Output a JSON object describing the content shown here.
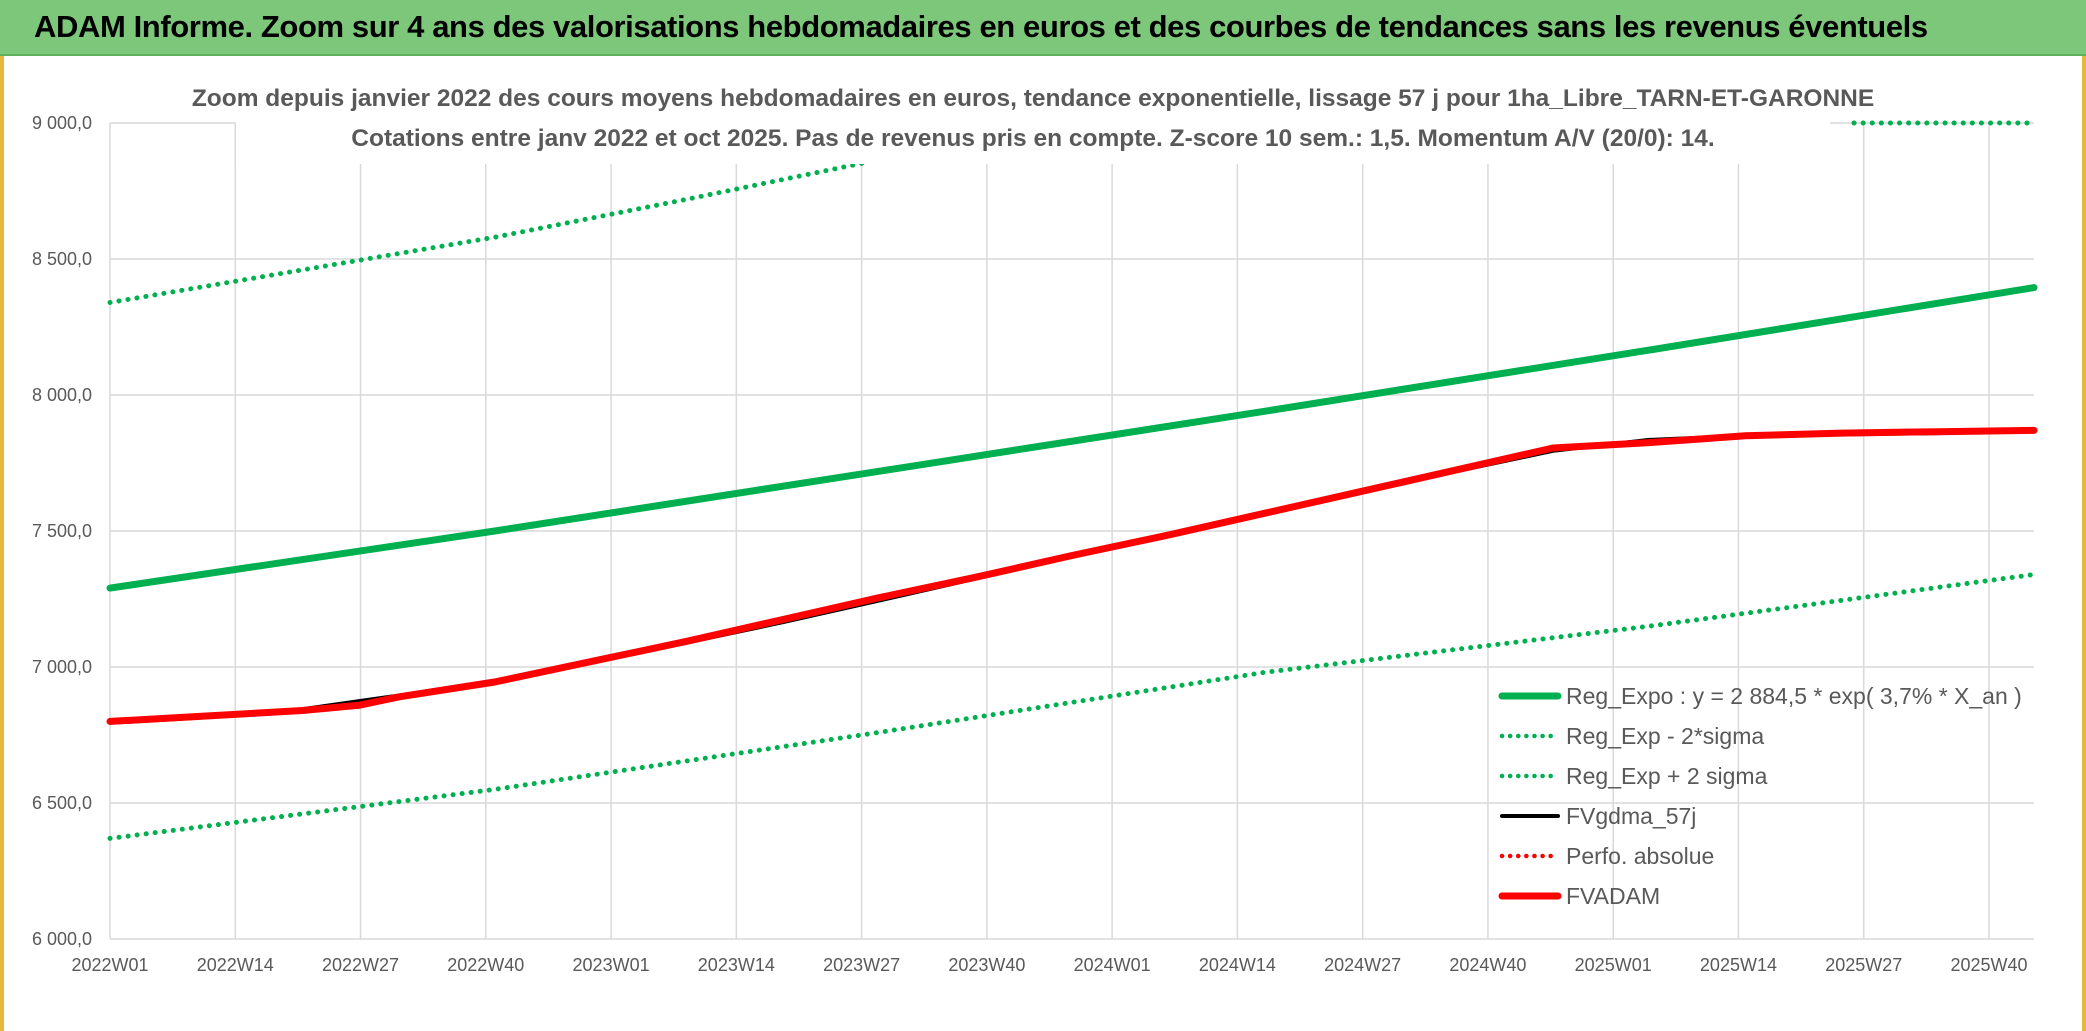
{
  "header": {
    "title": "ADAM Informe. Zoom sur 4 ans des valorisations hebdomadaires en euros et des courbes de tendances sans les revenus éventuels"
  },
  "colors": {
    "header_bg": "#7dc77b",
    "frame": "#e4b83a",
    "reg_expo": "#00b050",
    "fvgdma": "#000000",
    "fvadam": "#ff0000",
    "grid": "#d9d9d9",
    "text": "#595959"
  },
  "chart_data": {
    "type": "line",
    "title_lines": [
      "Zoom depuis janvier 2022 des cours moyens hebdomadaires en euros, tendance exponentielle, lissage 57 j pour 1ha_Libre_TARN-ET-GARONNE",
      "Cotations entre janv 2022 et oct 2025. Pas de revenus pris en compte. Z-score 10 sem.: 1,5. Momentum A/V (20/0): 14."
    ],
    "xlabel": "",
    "ylabel": "",
    "ylim": [
      6000,
      9000
    ],
    "y_ticks": [
      6000,
      6500,
      7000,
      7500,
      8000,
      8500,
      9000
    ],
    "y_tick_labels": [
      "6 000,0",
      "6 500,0",
      "7 000,0",
      "7 500,0",
      "8 000,0",
      "8 500,0",
      "9 000,0"
    ],
    "x_tick_labels": [
      "2022W01",
      "2022W14",
      "2022W27",
      "2022W40",
      "2023W01",
      "2023W14",
      "2023W27",
      "2023W40",
      "2024W01",
      "2024W14",
      "2024W27",
      "2024W40",
      "2025W01",
      "2025W14",
      "2025W27",
      "2025W40"
    ],
    "x_range_weeks": [
      0,
      200
    ],
    "grid": true,
    "legend_position": "bottom-right",
    "series": [
      {
        "name": "Reg_Expo : y = 2 884,5 * exp( 3,7% *  X_an )",
        "style": "solid",
        "weight": "thick",
        "color": "#00b050",
        "x": [
          0,
          40,
          80,
          120,
          160,
          200
        ],
        "values": [
          7290,
          7500,
          7720,
          7940,
          8165,
          8395
        ]
      },
      {
        "name": "Reg_Exp - 2*sigma",
        "style": "dotted",
        "weight": "medium",
        "color": "#00b050",
        "x": [
          0,
          40,
          80,
          120,
          160,
          200
        ],
        "values": [
          6370,
          6550,
          6760,
          6980,
          7150,
          7340
        ]
      },
      {
        "name": "Reg_Exp + 2 sigma",
        "style": "dotted",
        "weight": "medium",
        "color": "#00b050",
        "x": [
          0,
          20,
          40,
          60,
          78.6
        ],
        "values": [
          8340,
          8460,
          8580,
          8720,
          8855
        ]
      },
      {
        "name": "FVgdma_57j",
        "style": "solid",
        "weight": "medium",
        "color": "#000000",
        "x": [
          0,
          10,
          20,
          26,
          30,
          40,
          50,
          60,
          70,
          80,
          90,
          100,
          110,
          120,
          130,
          140,
          150,
          160,
          170,
          180,
          190,
          200
        ],
        "values": [
          6795,
          6815,
          6845,
          6875,
          6895,
          6950,
          7020,
          7090,
          7165,
          7245,
          7325,
          7405,
          7480,
          7560,
          7640,
          7720,
          7795,
          7835,
          7850,
          7855,
          7860,
          7868
        ]
      },
      {
        "name": "Perfo. absolue",
        "style": "dotted",
        "weight": "medium",
        "color": "#ff0000",
        "x": [],
        "values": []
      },
      {
        "name": "FVADAM",
        "style": "solid",
        "weight": "thick",
        "color": "#ff0000",
        "x": [
          0,
          10,
          20,
          26,
          30,
          40,
          50,
          60,
          70,
          80,
          90,
          100,
          110,
          120,
          130,
          140,
          150,
          160,
          170,
          180,
          190,
          200
        ],
        "values": [
          6800,
          6820,
          6840,
          6860,
          6890,
          6945,
          7020,
          7095,
          7175,
          7255,
          7330,
          7410,
          7485,
          7565,
          7645,
          7725,
          7805,
          7825,
          7850,
          7860,
          7865,
          7870
        ]
      }
    ]
  }
}
